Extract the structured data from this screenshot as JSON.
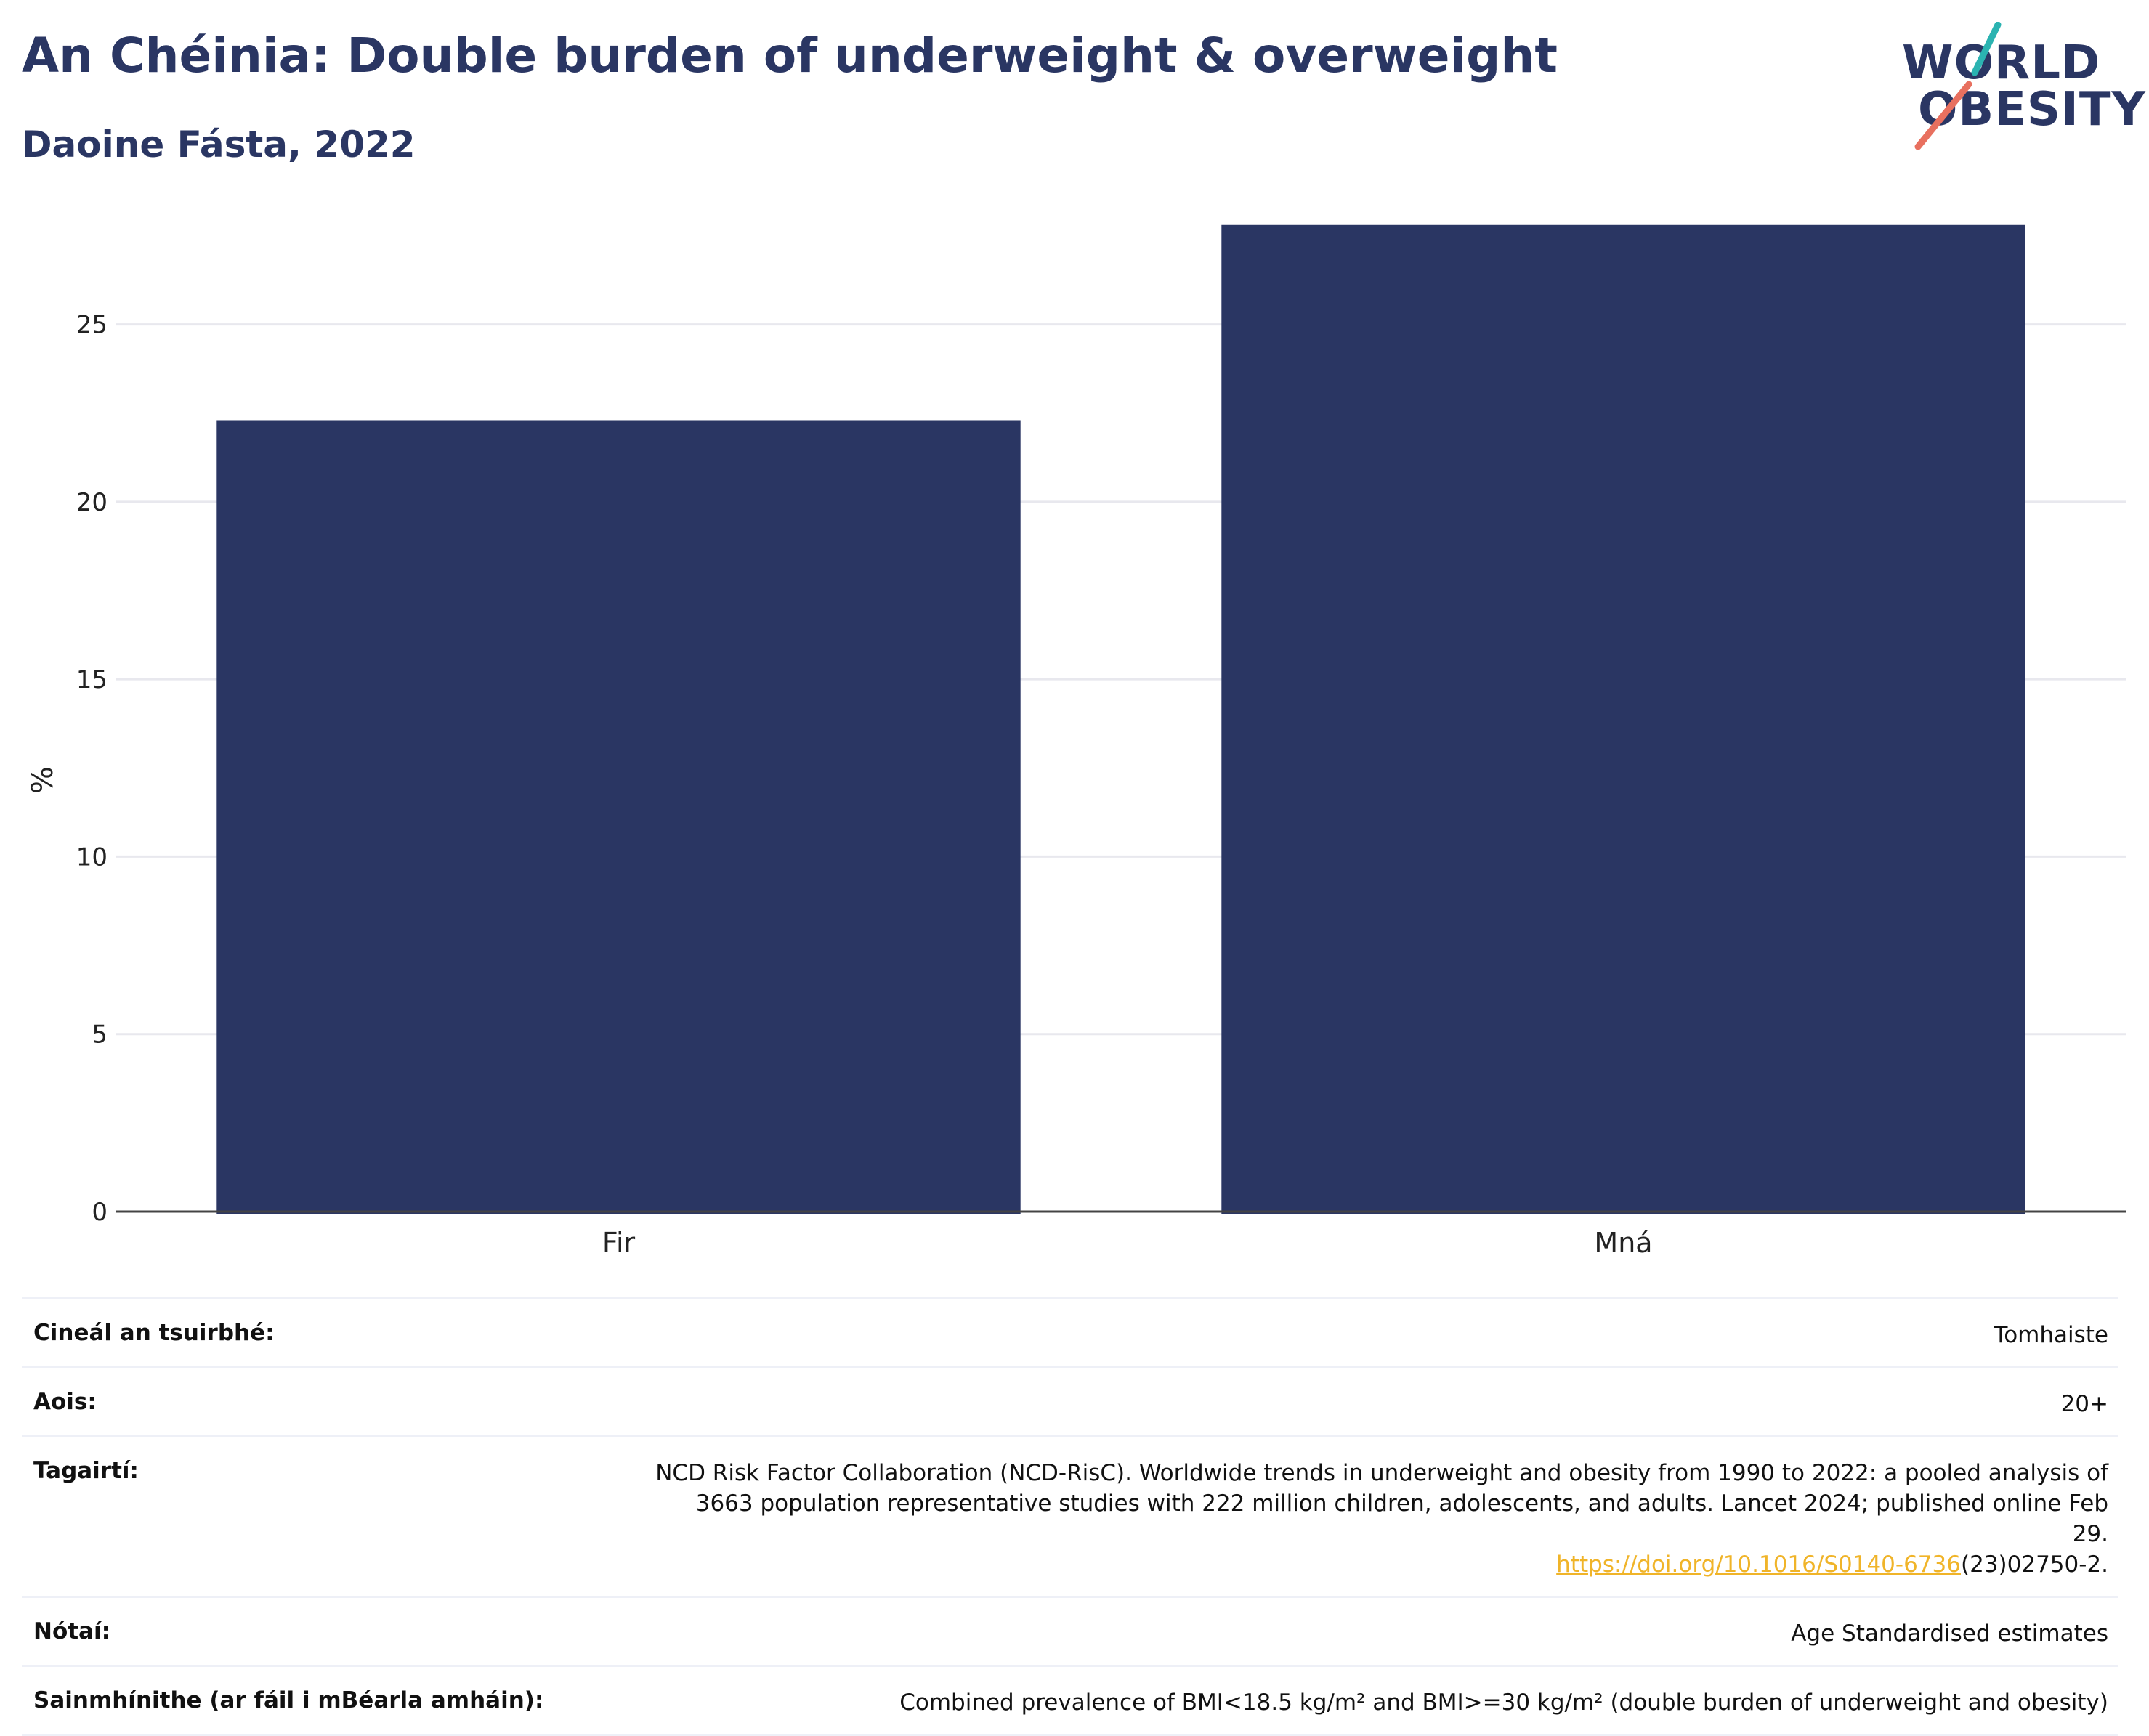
{
  "header": {
    "title": "An Chéinia: Double burden of underweight & overweight",
    "subtitle": "Daoine Fásta, 2022"
  },
  "logo": {
    "line1": "WORLD",
    "line2": "OBESITY",
    "accent_teal": "#2bb3b1",
    "accent_coral": "#e8705f"
  },
  "colors": {
    "bar": "#2a3663",
    "title": "#2a3663",
    "grid": "#e8e8ee",
    "axis": "#444444"
  },
  "chart_data": {
    "type": "bar",
    "categories": [
      "Fir",
      "Mná"
    ],
    "values": [
      22.3,
      27.8
    ],
    "ylabel": "%",
    "ylim": [
      0,
      28
    ],
    "yticks": [
      0,
      5,
      10,
      15,
      20,
      25
    ],
    "grid": true
  },
  "meta": {
    "rows": [
      {
        "label": "Cineál an tsuirbhé:",
        "value": "Tomhaiste"
      },
      {
        "label": "Aois:",
        "value": "20+"
      },
      {
        "label": "Tagairtí:",
        "value": "NCD Risk Factor Collaboration (NCD-RisC). Worldwide trends in underweight and obesity from 1990 to 2022: a pooled analysis of 3663 population representative studies with 222 million children, adolescents, and adults. Lancet 2024; published online Feb 29.",
        "link": "https://doi.org/10.1016/S0140-6736",
        "link_suffix": "(23)02750-2."
      },
      {
        "label": "Nótaí:",
        "value": "Age Standardised estimates"
      },
      {
        "label": "Sainmhínithe (ar fáil i mBéarla amháin):",
        "value": "Combined prevalence of BMI<18.5 kg/m² and BMI>=30 kg/m² (double burden of underweight and obesity)"
      }
    ]
  }
}
